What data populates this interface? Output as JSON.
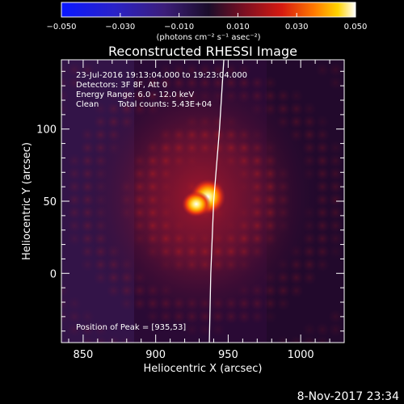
{
  "chart_data": {
    "type": "heatmap",
    "title": "Reconstructed RHESSI Image",
    "xlabel": "Heliocentric X (arcsec)",
    "ylabel": "Heliocentric Y (arcsec)",
    "xlim": [
      835,
      1030
    ],
    "ylim": [
      -48,
      148
    ],
    "xticks": [
      850,
      900,
      950,
      1000
    ],
    "yticks": [
      0,
      50,
      100
    ],
    "colorbar": {
      "range": [
        -0.05,
        0.05
      ],
      "ticks": [
        "−0.050",
        "−0.030",
        "−0.010",
        "0.010",
        "0.030",
        "0.050"
      ],
      "units": "(photons cm⁻² s⁻¹ asec⁻²)",
      "colormap": "blue-purple-red-yellow-white"
    },
    "annotations": {
      "time_range": "23-Jul-2016 19:13:04.000 to 19:23:04.000",
      "detectors": "Detectors: 3F 8F, Att 0",
      "energy": "Energy Range: 6.0 - 12.0 keV",
      "method": "Clean",
      "counts": "Total counts: 5.43E+04",
      "peak": "Position of Peak = [935,53]"
    },
    "peak": {
      "x": 935,
      "y": 53
    },
    "sources": [
      {
        "x": 936,
        "y": 53,
        "intensity": 1.0
      },
      {
        "x": 928,
        "y": 48,
        "intensity": 0.85
      }
    ],
    "limb_x_at_y": [
      [
        947,
        148
      ],
      [
        944,
        100
      ],
      [
        940,
        50
      ],
      [
        938,
        0
      ],
      [
        937,
        -48
      ]
    ],
    "grid": false
  },
  "footer": {
    "timestamp": "8-Nov-2017 23:34"
  },
  "colors": {
    "background": "#000000",
    "text": "#ffffff",
    "limb": "#ffffff"
  }
}
